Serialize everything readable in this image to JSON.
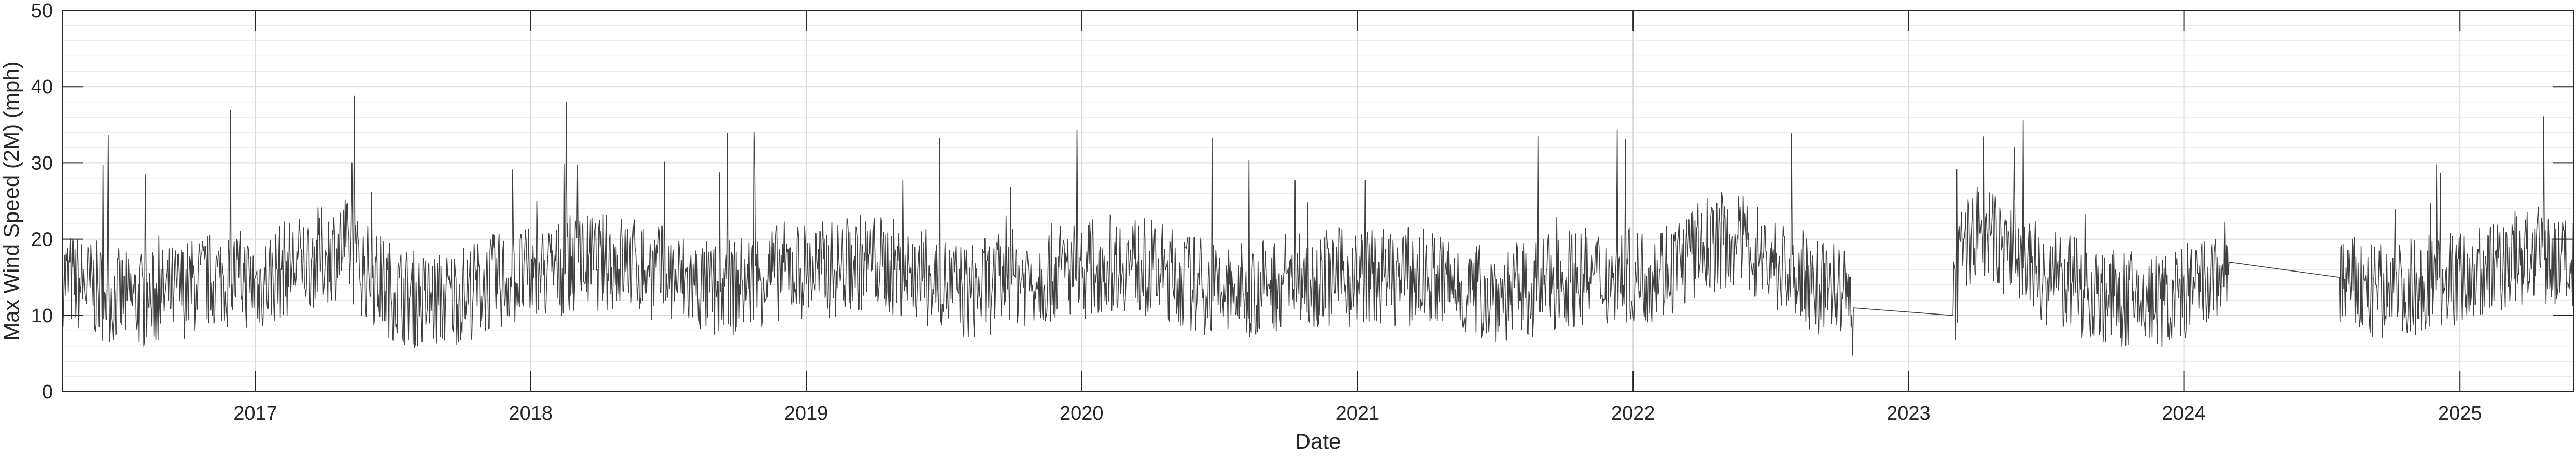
{
  "chart_data": {
    "type": "line",
    "title": "",
    "xlabel": "Date",
    "ylabel": "Max Wind Speed (2M) (mph)",
    "xlim": [
      "2016-04-20",
      "2025-06-01"
    ],
    "ylim": [
      0,
      50
    ],
    "x_tick_labels": [
      "2017",
      "2018",
      "2019",
      "2020",
      "2021",
      "2022",
      "2023",
      "2024",
      "2025"
    ],
    "y_tick_labels": [
      "0",
      "10",
      "20",
      "30",
      "40",
      "50"
    ],
    "y_ticks": [
      0,
      10,
      20,
      30,
      40,
      50
    ],
    "grid": true,
    "minor_grid": true,
    "legend": "none",
    "line_color": "#404040",
    "series": [
      {
        "x": [
          "2016-04-20",
          "2016-05-15",
          "2016-06-15",
          "2016-07-15",
          "2016-08-15",
          "2016-09-15",
          "2016-10-15",
          "2016-11-15",
          "2016-12-10",
          "2017-01-05",
          "2017-02-05",
          "2017-03-05",
          "2017-04-05",
          "2017-05-01",
          "2017-05-15",
          "2017-06-05",
          "2017-07-05",
          "2017-08-05",
          "2017-09-05",
          "2017-10-05",
          "2017-11-05",
          "2017-12-05",
          "2018-01-05",
          "2018-02-05",
          "2018-03-05",
          "2018-04-05",
          "2018-05-05",
          "2018-06-05",
          "2018-07-05",
          "2018-08-05",
          "2018-09-05",
          "2018-10-05",
          "2018-11-05",
          "2018-12-05",
          "2019-01-05",
          "2019-02-05",
          "2019-03-05",
          "2019-04-05",
          "2019-05-05",
          "2019-06-05",
          "2019-07-05",
          "2019-08-05",
          "2019-09-05",
          "2019-10-05",
          "2019-11-05",
          "2019-12-05",
          "2020-01-05",
          "2020-02-05",
          "2020-03-05",
          "2020-04-05",
          "2020-05-05",
          "2020-06-05",
          "2020-07-05",
          "2020-08-05",
          "2020-09-05",
          "2020-10-05",
          "2020-11-05",
          "2020-12-05",
          "2021-01-05",
          "2021-02-05",
          "2021-03-05",
          "2021-04-05",
          "2021-05-05",
          "2021-06-05",
          "2021-07-05",
          "2021-08-05",
          "2021-09-05",
          "2021-10-05",
          "2021-11-05",
          "2021-12-05",
          "2022-01-05",
          "2022-02-05",
          "2022-03-05",
          "2022-04-05",
          "2022-05-05",
          "2022-06-05",
          "2022-07-05",
          "2022-08-05",
          "2022-09-05",
          "2022-10-05",
          "2022-10-20",
          "2023-03-01",
          "2023-03-15",
          "2023-04-05",
          "2023-05-05",
          "2023-06-05",
          "2023-07-05",
          "2023-08-05",
          "2023-09-05",
          "2023-10-05",
          "2023-11-05",
          "2023-12-05",
          "2024-01-05",
          "2024-02-05",
          "2024-03-01",
          "2024-07-25",
          "2024-08-10",
          "2024-09-05",
          "2024-10-05",
          "2024-11-05",
          "2024-12-05",
          "2025-01-05",
          "2025-02-05",
          "2025-03-05",
          "2025-04-05",
          "2025-05-05",
          "2025-06-01"
        ],
        "y": [
          15,
          14,
          13,
          12,
          12,
          13,
          14,
          15,
          15,
          14,
          16,
          17,
          18,
          19,
          17,
          15,
          13,
          12,
          12,
          13,
          14,
          15,
          15,
          16,
          17,
          17,
          17,
          16,
          15,
          14,
          13,
          14,
          15,
          16,
          16,
          16,
          17,
          17,
          16,
          15,
          14,
          13,
          14,
          15,
          15,
          16,
          16,
          17,
          17,
          16,
          15,
          14,
          13,
          13,
          14,
          15,
          15,
          15,
          15,
          15,
          15,
          15,
          14,
          13,
          13,
          13,
          14,
          15,
          15,
          15,
          15,
          16,
          17,
          19,
          20,
          19,
          17,
          15,
          14,
          13,
          11,
          10,
          20,
          21,
          19,
          17,
          15,
          14,
          13,
          12,
          12,
          12,
          13,
          14,
          17,
          15,
          14,
          13,
          13,
          14,
          15,
          15,
          16,
          17,
          18,
          17,
          16
        ]
      }
    ]
  }
}
